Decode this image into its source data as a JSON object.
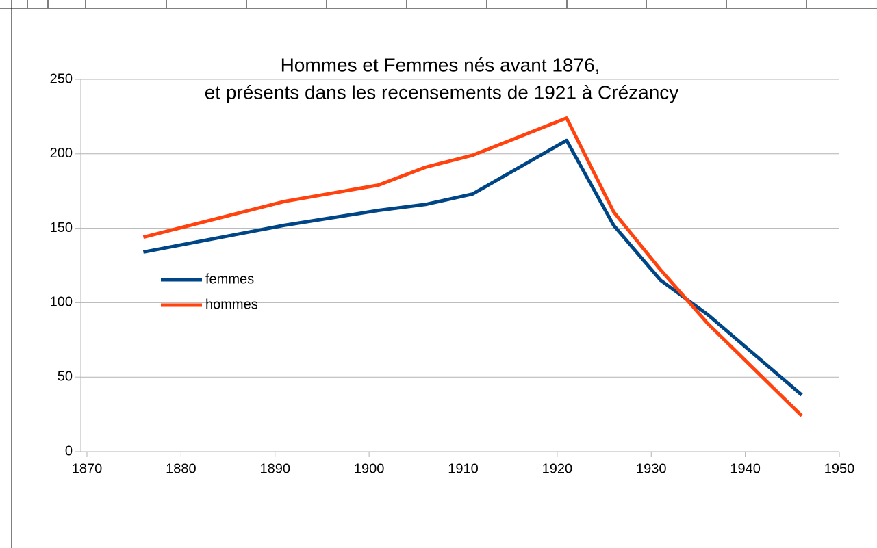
{
  "chart_data": {
    "type": "line",
    "title": [
      "Hommes et Femmes nés avant 1876,",
      "et présents dans les recensements de 1921 à Crézancy"
    ],
    "x": [
      1876,
      1891,
      1901,
      1906,
      1911,
      1921,
      1926,
      1931,
      1936,
      1946
    ],
    "series": [
      {
        "name": "femmes",
        "color": "#004586",
        "values": [
          134,
          152,
          162,
          166,
          173,
          209,
          152,
          115,
          92,
          38
        ]
      },
      {
        "name": "hommes",
        "color": "#ff420e",
        "values": [
          144,
          168,
          179,
          191,
          199,
          224,
          161,
          122,
          86,
          24
        ]
      }
    ],
    "xlim": [
      1870,
      1950
    ],
    "xticks": [
      1870,
      1880,
      1890,
      1900,
      1910,
      1920,
      1930,
      1940,
      1950
    ],
    "ylim": [
      0,
      250
    ],
    "yticks": [
      0,
      50,
      100,
      150,
      200,
      250
    ],
    "grid": true,
    "legend": "left"
  }
}
